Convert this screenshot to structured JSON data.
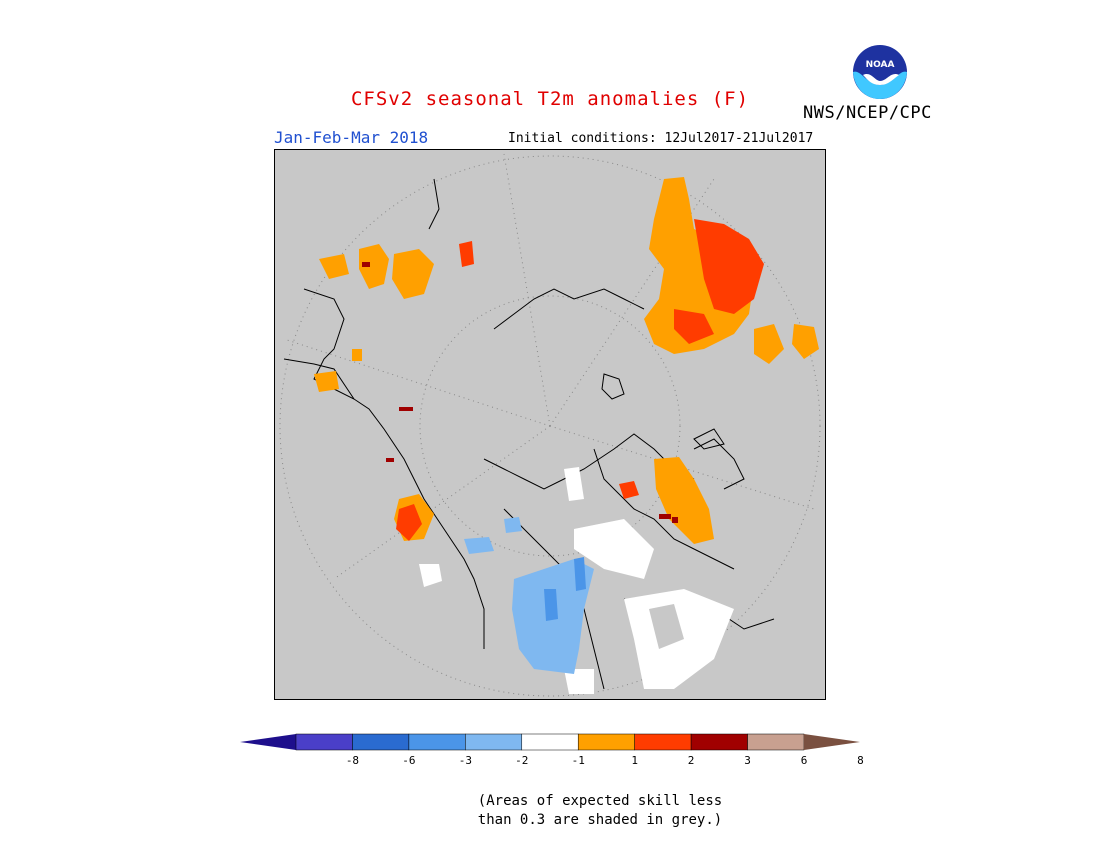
{
  "header": {
    "title": "CFSv2 seasonal T2m anomalies (F)",
    "period": "Jan-Feb-Mar 2018",
    "initial_conditions": "Initial conditions: 12Jul2017-21Jul2017",
    "agency": "NWS/NCEP/CPC",
    "logo_text": "NOAA"
  },
  "legend": {
    "ticks": [
      "-8",
      "-6",
      "-3",
      "-2",
      "-1",
      "1",
      "2",
      "3",
      "6",
      "8"
    ],
    "colors": [
      "#1e0f8c",
      "#4a3fc8",
      "#2a6bd0",
      "#4b95e8",
      "#7fb8f0",
      "#ffffff",
      "#ffa000",
      "#ff3c00",
      "#a00000",
      "#c8a090",
      "#7a5040"
    ]
  },
  "map": {
    "background": "#c8c8c8",
    "projection": "polar stereographic, north pole"
  },
  "note": {
    "line1": "(Areas of expected skill less",
    "line2": "than 0.3 are shaded in grey.)"
  }
}
